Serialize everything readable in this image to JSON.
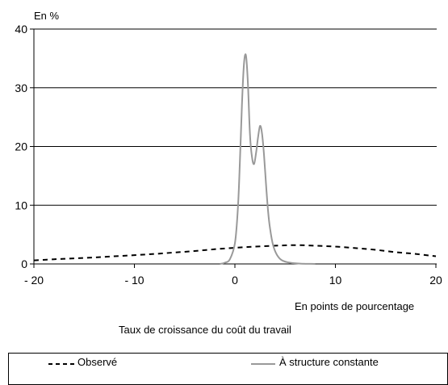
{
  "chart_data": {
    "type": "line",
    "ylabel": "En %",
    "xlabel": "En points de pourcentage",
    "caption": "Taux de croissance du coût du travail",
    "xlim": [
      -20,
      20
    ],
    "ylim": [
      0,
      40
    ],
    "x_ticks": [
      -20,
      -10,
      0,
      10,
      20
    ],
    "x_tick_labels": [
      "- 20",
      "- 10",
      "0",
      "10",
      "20"
    ],
    "y_ticks": [
      0,
      10,
      20,
      30,
      40
    ],
    "y_tick_labels": [
      "0",
      "10",
      "20",
      "30",
      "40"
    ],
    "grid": "horizontal",
    "legend_position": "bottom",
    "series": [
      {
        "name": "Observé",
        "style": "dashed",
        "color": "#000000",
        "x": [
          -20,
          -18,
          -16,
          -14,
          -12,
          -10,
          -8,
          -6,
          -4,
          -2,
          0,
          2,
          4,
          6,
          8,
          10,
          12,
          14,
          16,
          18,
          20
        ],
        "y": [
          0.6,
          0.8,
          0.95,
          1.1,
          1.3,
          1.5,
          1.7,
          1.95,
          2.2,
          2.5,
          2.75,
          2.95,
          3.1,
          3.2,
          3.1,
          2.95,
          2.7,
          2.4,
          2.0,
          1.7,
          1.3
        ]
      },
      {
        "name": "À structure constante",
        "style": "solid",
        "color": "#999999",
        "x": [
          -1.5,
          -1,
          -0.5,
          0,
          0.3,
          0.5,
          0.7,
          0.9,
          1.1,
          1.3,
          1.5,
          1.7,
          1.9,
          2.1,
          2.3,
          2.5,
          2.7,
          2.9,
          3.1,
          3.3,
          3.5,
          3.8,
          4.2,
          4.7,
          5.5,
          6.5,
          8
        ],
        "y": [
          0,
          0.2,
          0.8,
          3.5,
          9.5,
          17.5,
          27,
          34,
          35.5,
          30.5,
          22,
          18.2,
          17,
          18.8,
          21.5,
          23.5,
          22.2,
          18.5,
          13.5,
          9,
          6,
          3.2,
          1.5,
          0.6,
          0.2,
          0.05,
          0
        ]
      }
    ]
  }
}
